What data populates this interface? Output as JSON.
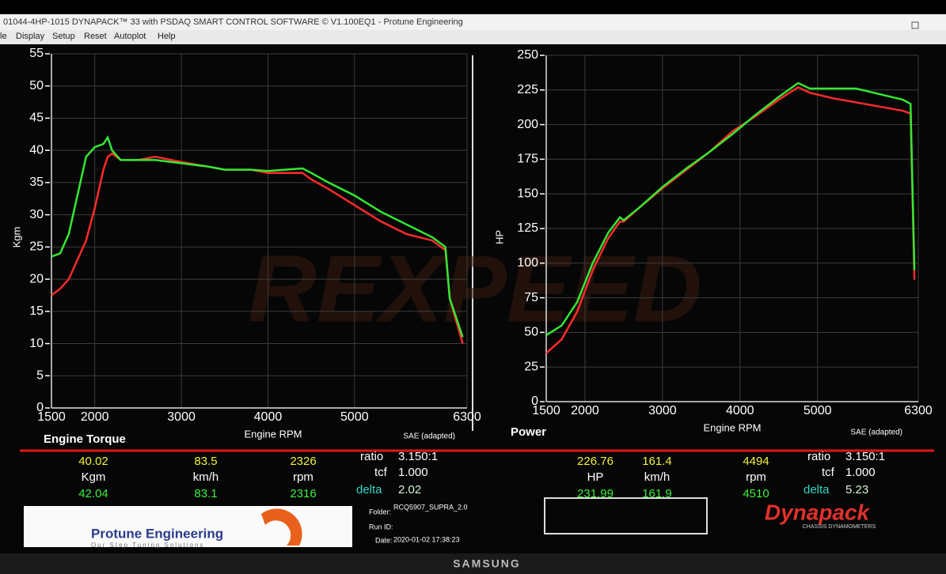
{
  "window": {
    "title": "01044-4HP-1015 DYNAPACK™ 33 with PSDAQ SMART CONTROL SOFTWARE © V1.100EQ1 - Protune Engineering",
    "menu": [
      "le",
      "Display",
      "Setup",
      "Reset",
      "Autoplot",
      "Help"
    ]
  },
  "watermark": "REXPEED",
  "chart_data": [
    {
      "type": "line",
      "title": "Engine Torque",
      "x_label": "Engine RPM",
      "y_label": "Kgm",
      "note": "SAE (adapted)",
      "x": [
        1500,
        1600,
        1700,
        1800,
        1900,
        2000,
        2100,
        2150,
        2200,
        2300,
        2500,
        2700,
        3000,
        3300,
        3500,
        3800,
        4000,
        4200,
        4400,
        4500,
        4700,
        5000,
        5300,
        5600,
        5900,
        6050,
        6100,
        6250
      ],
      "series": [
        {
          "color": "#ff2b2b",
          "values": [
            17.5,
            18.5,
            20,
            23,
            26,
            31,
            37,
            39,
            39.5,
            38.5,
            38.5,
            39,
            38.2,
            37.5,
            37,
            37,
            36.5,
            36.5,
            36.5,
            35.5,
            34,
            31.5,
            29,
            27,
            26,
            24.5,
            17,
            10
          ]
        },
        {
          "color": "#33e833",
          "values": [
            23.5,
            24,
            27,
            33,
            39,
            40.5,
            41,
            42,
            40,
            38.5,
            38.5,
            38.5,
            38,
            37.5,
            37,
            37,
            36.8,
            37,
            37.2,
            36.5,
            35,
            33,
            30.5,
            28.5,
            26.5,
            25,
            17,
            11
          ]
        }
      ],
      "xlim": [
        1500,
        6300
      ],
      "xticks": [
        1500,
        2000,
        3000,
        4000,
        5000,
        6300
      ],
      "ylim": [
        0,
        55
      ],
      "yticks": [
        0,
        5,
        10,
        15,
        20,
        25,
        30,
        35,
        40,
        45,
        50,
        55
      ],
      "grid": true
    },
    {
      "type": "line",
      "title": "Power",
      "x_label": "Engine RPM",
      "y_label": "HP",
      "note": "SAE (adapted)",
      "x": [
        1500,
        1700,
        1900,
        2100,
        2300,
        2450,
        2500,
        2700,
        3000,
        3300,
        3600,
        3900,
        4200,
        4500,
        4750,
        4900,
        5200,
        5500,
        5800,
        6100,
        6200,
        6250
      ],
      "series": [
        {
          "color": "#ff2b2b",
          "values": [
            35,
            45,
            65,
            95,
            118,
            130,
            130,
            140,
            154,
            167,
            180,
            195,
            206,
            218,
            227,
            223,
            219,
            216,
            213,
            210,
            208,
            88
          ]
        },
        {
          "color": "#33e833",
          "values": [
            48,
            55,
            72,
            100,
            122,
            133,
            131,
            140,
            155,
            168,
            180,
            193,
            207,
            220,
            230,
            226,
            226,
            226,
            222,
            218,
            215,
            95
          ]
        }
      ],
      "xlim": [
        1500,
        6300
      ],
      "xticks": [
        1500,
        2000,
        3000,
        4000,
        5000,
        6300
      ],
      "ylim": [
        0,
        250
      ],
      "yticks": [
        0,
        25,
        50,
        75,
        100,
        125,
        150,
        175,
        200,
        225,
        250
      ],
      "grid": true
    }
  ],
  "readouts": [
    {
      "run1": [
        "40.02",
        "83.5",
        "2326"
      ],
      "units": [
        "Kgm",
        "km/h",
        "rpm"
      ],
      "run2": [
        "42.04",
        "83.1",
        "2316"
      ],
      "ratio_label": "ratio",
      "ratio": "3.150:1",
      "tcf_label": "tcf",
      "tcf": "1.000",
      "delta_label": "delta",
      "delta": "2.02"
    },
    {
      "run1": [
        "226.76",
        "161.4",
        "4494"
      ],
      "units": [
        "HP",
        "km/h",
        "rpm"
      ],
      "run2": [
        "231.99",
        "161.9",
        "4510"
      ],
      "ratio_label": "ratio",
      "ratio": "3.150:1",
      "tcf_label": "tcf",
      "tcf": "1.000",
      "delta_label": "delta",
      "delta": "5.23"
    }
  ],
  "run_info": {
    "folder_label": "Folder:",
    "folder": "RCQ5907_SUPRA_2.0",
    "run_id_label": "Run ID:",
    "date_label": "Date:",
    "date": "2020-01-02 17:38:23"
  },
  "logos": {
    "protune": "Protune Engineering",
    "protune_tagline": "Our Step Tuning Solutions",
    "dynapack": "Dynapack",
    "dynapack_tagline": "CHASSIS DYNAMOMETERS"
  },
  "monitor_brand": "SAMSUNG"
}
